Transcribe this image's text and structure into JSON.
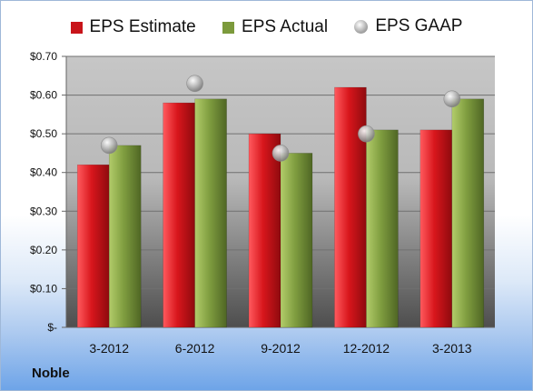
{
  "chart_data": {
    "type": "bar",
    "title": "",
    "xlabel": "",
    "ylabel": "",
    "categories": [
      "3-2012",
      "6-2012",
      "9-2012",
      "12-2012",
      "3-2013"
    ],
    "series": [
      {
        "name": "EPS Estimate",
        "kind": "bar",
        "color": "#c8141a",
        "values": [
          0.42,
          0.58,
          0.5,
          0.62,
          0.51
        ]
      },
      {
        "name": "EPS Actual",
        "kind": "bar",
        "color": "#7c9a3c",
        "values": [
          0.47,
          0.59,
          0.45,
          0.51,
          0.59
        ]
      },
      {
        "name": "EPS GAAP",
        "kind": "marker",
        "color": "#b0b0b0",
        "values": [
          0.47,
          0.63,
          0.45,
          0.5,
          0.59
        ]
      }
    ],
    "ylim": [
      0,
      0.7
    ],
    "yticks": [
      0,
      0.1,
      0.2,
      0.3,
      0.4,
      0.5,
      0.6,
      0.7
    ],
    "ytick_labels": [
      "$-",
      "$0.10",
      "$0.20",
      "$0.30",
      "$0.40",
      "$0.50",
      "$0.60",
      "$0.70"
    ],
    "grid": true,
    "legend_position": "top-center"
  },
  "footer": {
    "brand": "Noble"
  }
}
